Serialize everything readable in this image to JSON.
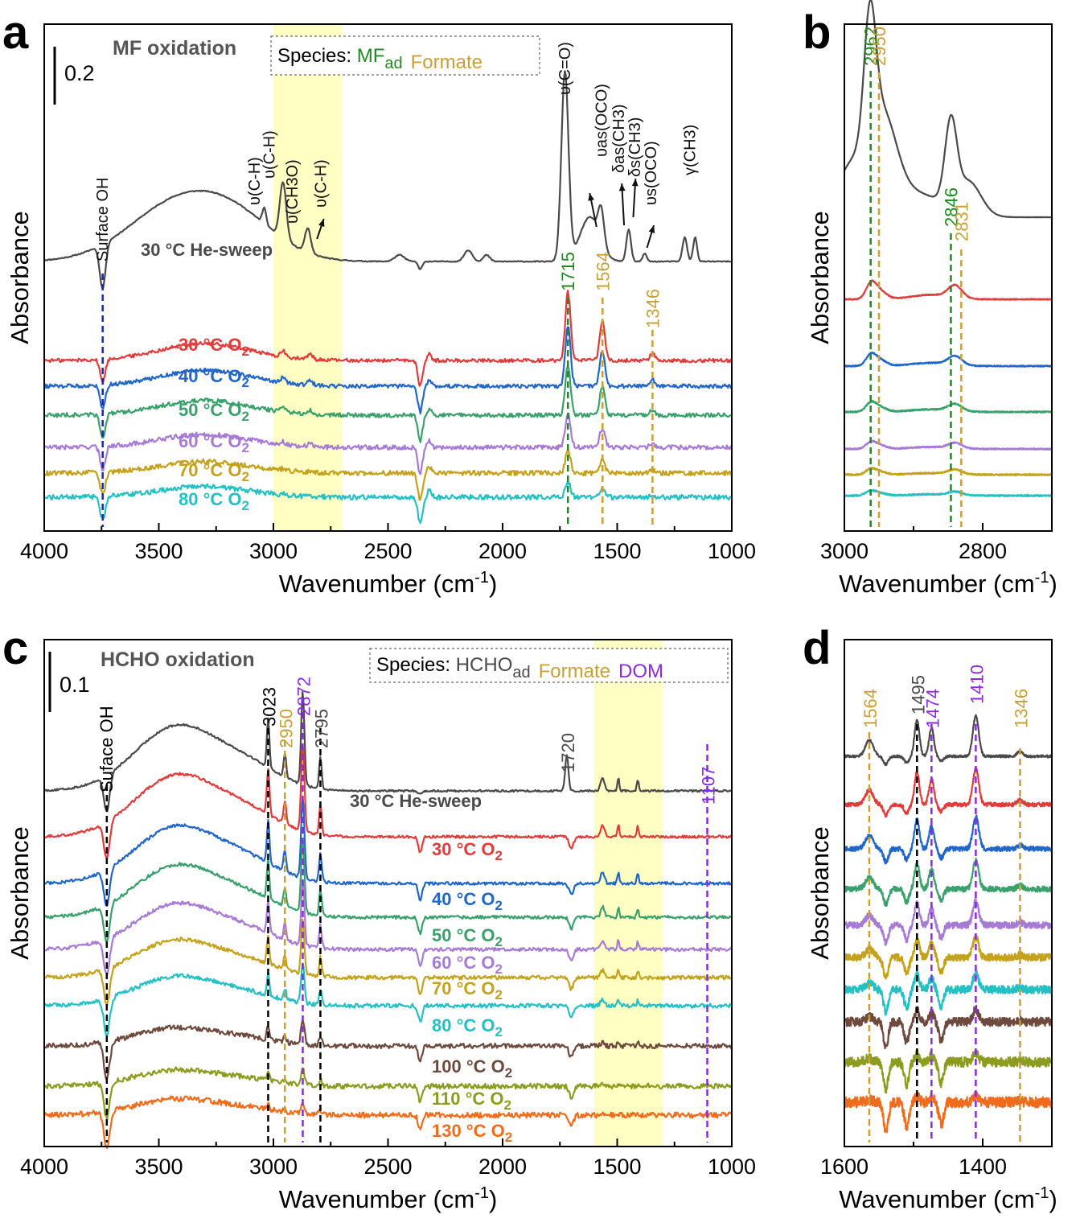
{
  "colors": {
    "grey": "#4a4a4a",
    "red": "#e03c3c",
    "blue": "#2166c8",
    "green": "#3aa06c",
    "purple": "#a77ad6",
    "gold": "#c4a21c",
    "cyan": "#25c0c4",
    "brown": "#6e4a3e",
    "olive": "#8c9c1e",
    "orange": "#ef6c1c",
    "mf": "#1f8a1f",
    "formate": "#c8a038",
    "dom": "#8a2be2",
    "surfaceoh": "#1a2aa0",
    "highlight": "#ffffc4"
  },
  "chart_data": [
    {
      "panel": "a",
      "type": "line",
      "title": "MF oxidation",
      "xlabel": "Wavenumber",
      "xlabel_unit": "(cm",
      "xlabel_sup": "-1",
      "xlabel_close": ")",
      "ylabel": "Absorbance",
      "xlim": [
        4000,
        1000
      ],
      "xticks": [
        "4000",
        "3500",
        "3000",
        "2500",
        "2000",
        "1500",
        "1000"
      ],
      "scale_bar": "0.2",
      "legend": {
        "prefix": "Species: ",
        "items": [
          {
            "text": "MF",
            "sub": "ad",
            "color": "mf"
          },
          {
            "text": "Formate",
            "sub": "",
            "color": "formate"
          }
        ]
      },
      "highlight_range": [
        3000,
        2700
      ],
      "series": [
        {
          "name": "30 °C He-sweep",
          "color": "grey"
        },
        {
          "name": "30 °C O2",
          "color": "red"
        },
        {
          "name": "40 °C O2",
          "color": "blue"
        },
        {
          "name": "50 °C O2",
          "color": "green"
        },
        {
          "name": "60 °C O2",
          "color": "purple"
        },
        {
          "name": "70 °C O2",
          "color": "gold"
        },
        {
          "name": "80 °C O2",
          "color": "cyan"
        }
      ],
      "peak_lines": [
        {
          "x": 3745,
          "label": "Surface OH",
          "color": "surfaceoh"
        },
        {
          "x": 1715,
          "label": "1715",
          "color": "mf"
        },
        {
          "x": 1564,
          "label": "1564",
          "color": "formate"
        },
        {
          "x": 1346,
          "label": "1346",
          "color": "formate"
        }
      ],
      "assignments": [
        "υ(C-H)",
        "υ(C-H)",
        "υ(CH3O)",
        "υ(C-H)",
        "υ(C=O)",
        "υas(OCO)",
        "δas(CH3)",
        "δs(CH3)",
        "υs(OCO)",
        "γ(CH3)"
      ]
    },
    {
      "panel": "b",
      "type": "line",
      "xlabel": "Wavenumber",
      "xlabel_unit": "(cm",
      "xlabel_sup": "-1",
      "xlabel_close": ")",
      "ylabel": "Absorbance",
      "xlim": [
        3000,
        2700
      ],
      "xticks": [
        "3000",
        "2800"
      ],
      "series": [
        {
          "name": "30 °C He-sweep",
          "color": "grey"
        },
        {
          "name": "30 °C O2",
          "color": "red"
        },
        {
          "name": "40 °C O2",
          "color": "blue"
        },
        {
          "name": "50 °C O2",
          "color": "green"
        },
        {
          "name": "60 °C O2",
          "color": "purple"
        },
        {
          "name": "70 °C O2",
          "color": "gold"
        },
        {
          "name": "80 °C O2",
          "color": "cyan"
        }
      ],
      "peak_lines": [
        {
          "x": 2962,
          "label": "2962",
          "color": "mf"
        },
        {
          "x": 2950,
          "label": "2950",
          "color": "formate"
        },
        {
          "x": 2846,
          "label": "2846",
          "color": "mf"
        },
        {
          "x": 2831,
          "label": "2831",
          "color": "formate"
        }
      ]
    },
    {
      "panel": "c",
      "type": "line",
      "title": "HCHO oxidation",
      "xlabel": "Wavenumber",
      "xlabel_unit": "(cm",
      "xlabel_sup": "-1",
      "xlabel_close": ")",
      "ylabel": "Absorbance",
      "xlim": [
        4000,
        1000
      ],
      "xticks": [
        "4000",
        "3500",
        "3000",
        "2500",
        "2000",
        "1500",
        "1000"
      ],
      "scale_bar": "0.1",
      "legend": {
        "prefix": "Species: ",
        "items": [
          {
            "text": "HCHO",
            "sub": "ad",
            "color": "grey"
          },
          {
            "text": "Formate",
            "sub": "",
            "color": "formate"
          },
          {
            "text": "DOM",
            "sub": "",
            "color": "dom"
          }
        ]
      },
      "highlight_range": [
        1600,
        1300
      ],
      "series": [
        {
          "name": "30 °C He-sweep",
          "color": "grey"
        },
        {
          "name": "30 °C O2",
          "color": "red"
        },
        {
          "name": "40 °C O2",
          "color": "blue"
        },
        {
          "name": "50 °C O2",
          "color": "green"
        },
        {
          "name": "60 °C O2",
          "color": "purple"
        },
        {
          "name": "70 °C O2",
          "color": "gold"
        },
        {
          "name": "80 °C O2",
          "color": "cyan"
        },
        {
          "name": "100 °C O2",
          "color": "brown"
        },
        {
          "name": "110 °C O2",
          "color": "olive"
        },
        {
          "name": "130 °C O2",
          "color": "orange"
        }
      ],
      "peak_lines": [
        {
          "x": 3727,
          "label": "Suface OH",
          "color": "black"
        },
        {
          "x": 3023,
          "label": "3023",
          "color": "black"
        },
        {
          "x": 2950,
          "label": "2950",
          "color": "formate"
        },
        {
          "x": 2872,
          "label": "2872",
          "color": "dom"
        },
        {
          "x": 2795,
          "label": "2795",
          "color": "black"
        },
        {
          "x": 1720,
          "label": "1720",
          "color": "none"
        },
        {
          "x": 1107,
          "label": "1107",
          "color": "dom"
        }
      ]
    },
    {
      "panel": "d",
      "type": "line",
      "xlabel": "Wavenumber",
      "xlabel_unit": "(cm",
      "xlabel_sup": "-1",
      "xlabel_close": ")",
      "ylabel": "Absorbance",
      "xlim": [
        1600,
        1300
      ],
      "xticks": [
        "1600",
        "1400"
      ],
      "series": [
        {
          "name": "30 °C He-sweep",
          "color": "grey"
        },
        {
          "name": "30 °C O2",
          "color": "red"
        },
        {
          "name": "40 °C O2",
          "color": "blue"
        },
        {
          "name": "50 °C O2",
          "color": "green"
        },
        {
          "name": "60 °C O2",
          "color": "purple"
        },
        {
          "name": "70 °C O2",
          "color": "gold"
        },
        {
          "name": "80 °C O2",
          "color": "cyan"
        },
        {
          "name": "100 °C O2",
          "color": "brown"
        },
        {
          "name": "110 °C O2",
          "color": "olive"
        },
        {
          "name": "130 °C O2",
          "color": "orange"
        }
      ],
      "peak_lines": [
        {
          "x": 1564,
          "label": "1564",
          "color": "formate"
        },
        {
          "x": 1495,
          "label": "1495",
          "color": "black"
        },
        {
          "x": 1474,
          "label": "1474",
          "color": "dom"
        },
        {
          "x": 1410,
          "label": "1410",
          "color": "dom"
        },
        {
          "x": 1346,
          "label": "1346",
          "color": "formate"
        }
      ]
    }
  ]
}
